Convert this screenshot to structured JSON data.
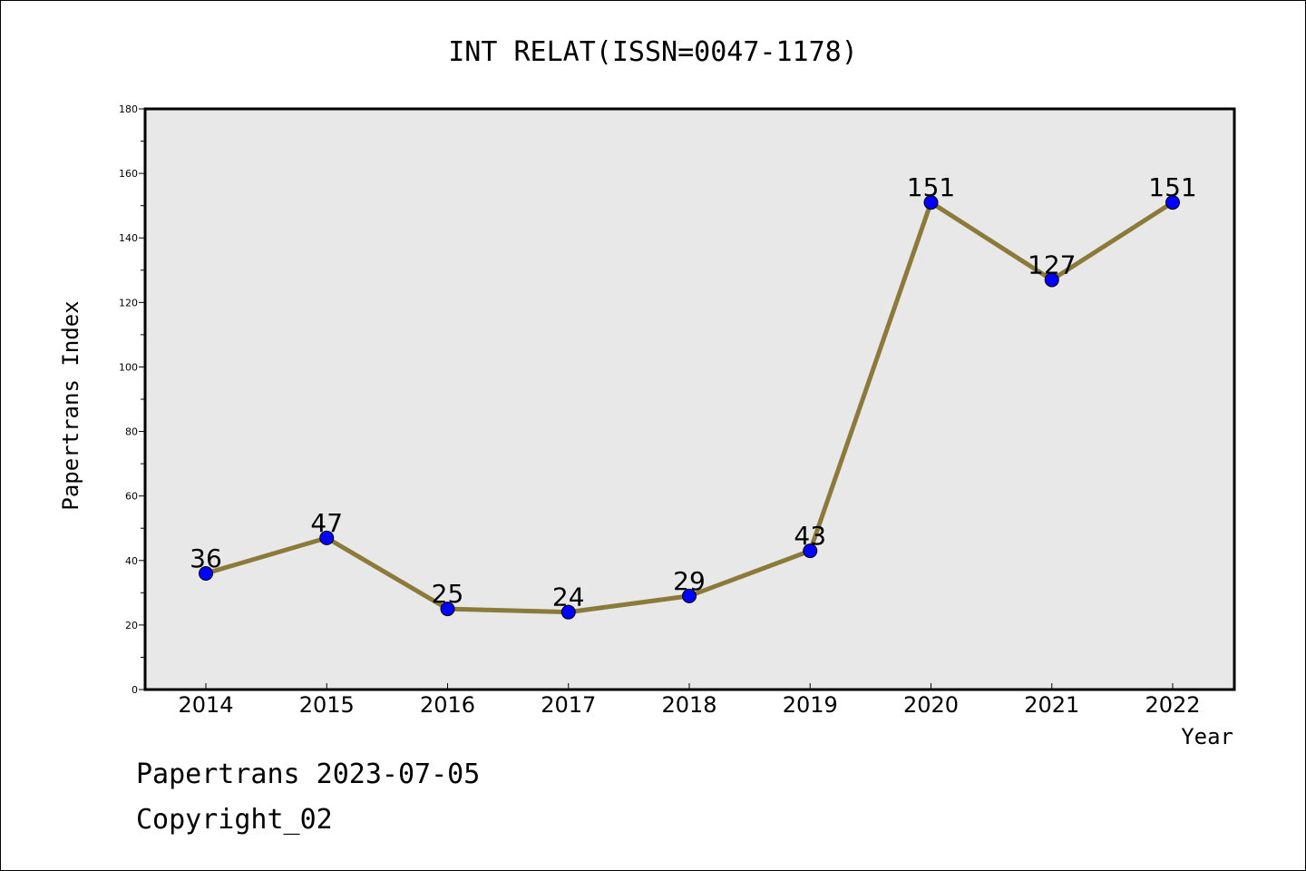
{
  "chart_data": {
    "type": "line",
    "title": "INT RELAT(ISSN=0047-1178)",
    "xlabel": "Year",
    "ylabel": "Papertrans Index",
    "categories": [
      "2014",
      "2015",
      "2016",
      "2017",
      "2018",
      "2019",
      "2020",
      "2021",
      "2022"
    ],
    "series": [
      {
        "values": [
          36,
          47,
          25,
          24,
          29,
          43,
          151,
          127,
          151
        ],
        "data_labels": [
          "36",
          "47",
          "25",
          "24",
          "29",
          "43",
          "151",
          "127",
          "151"
        ]
      }
    ],
    "ylim": [
      0,
      180
    ],
    "yticks": [
      "0",
      "20",
      "40",
      "60",
      "80",
      "100",
      "120",
      "140",
      "160",
      "180"
    ],
    "grid": false,
    "colors": {
      "line": "#8c7a3a",
      "marker": "#0000ff",
      "plot_background": "#e8e8e8"
    }
  },
  "footer": {
    "line1": "Papertrans 2023-07-05",
    "line2": "Copyright_02"
  }
}
